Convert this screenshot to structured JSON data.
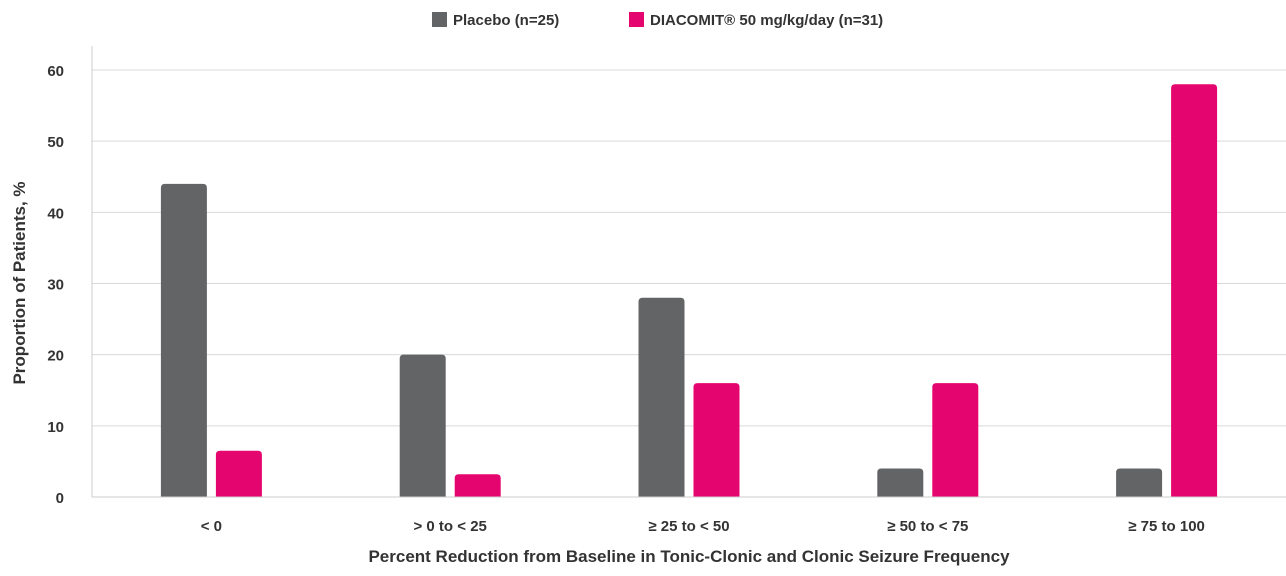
{
  "chart_data": {
    "type": "bar",
    "title": "",
    "xlabel": "Percent Reduction from Baseline in Tonic-Clonic and Clonic Seizure Frequency",
    "ylabel": "Proportion of Patients, %",
    "ylim": [
      0,
      60
    ],
    "yticks": [
      0,
      10,
      20,
      30,
      40,
      50,
      60
    ],
    "grid": true,
    "legend_position": "top-center",
    "categories": [
      "< 0",
      "> 0 to < 25",
      "≥ 25 to < 50",
      "≥ 50 to < 75",
      "≥ 75 to 100"
    ],
    "series": [
      {
        "name": "Placebo (n=25)",
        "color": "#636466",
        "values": [
          44,
          20,
          28,
          4,
          4
        ]
      },
      {
        "name": "DIACOMIT® 50 mg/kg/day (n=31)",
        "color": "#E5056F",
        "values": [
          6.5,
          3.2,
          16,
          16,
          58
        ]
      }
    ]
  }
}
